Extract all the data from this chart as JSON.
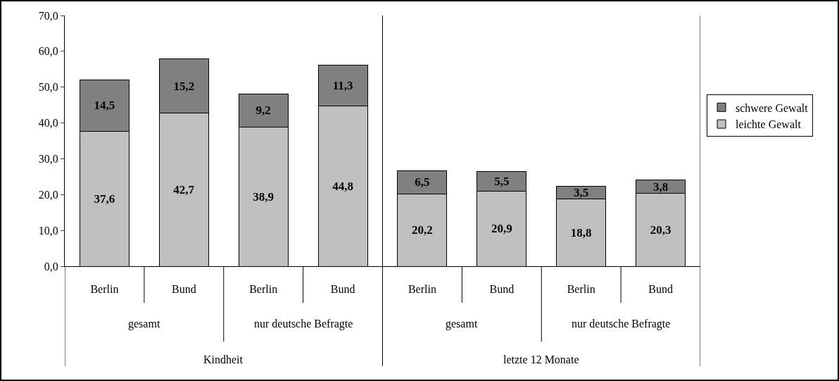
{
  "chart_data": {
    "type": "bar",
    "stacked": true,
    "categories": [
      "Berlin",
      "Bund",
      "Berlin",
      "Bund",
      "Berlin",
      "Bund",
      "Berlin",
      "Bund"
    ],
    "series": [
      {
        "name": "leichte Gewalt",
        "color": "#c0c0c0",
        "values": [
          37.6,
          42.7,
          38.9,
          44.8,
          20.2,
          20.9,
          18.8,
          20.3
        ],
        "value_labels": [
          "37,6",
          "42,7",
          "38,9",
          "44,8",
          "20,2",
          "20,9",
          "18,8",
          "20,3"
        ]
      },
      {
        "name": "schwere Gewalt",
        "color": "#808080",
        "values": [
          14.5,
          15.2,
          9.2,
          11.3,
          6.5,
          5.5,
          3.5,
          3.8
        ],
        "value_labels": [
          "14,5",
          "15,2",
          "9,2",
          "11,3",
          "6,5",
          "5,5",
          "3,5",
          "3,8"
        ]
      }
    ],
    "ylim": [
      0,
      70
    ],
    "yticks": [
      {
        "value": 0,
        "label": "0,0"
      },
      {
        "value": 10,
        "label": "10,0"
      },
      {
        "value": 20,
        "label": "20,0"
      },
      {
        "value": 30,
        "label": "30,0"
      },
      {
        "value": 40,
        "label": "40,0"
      },
      {
        "value": 50,
        "label": "50,0"
      },
      {
        "value": 60,
        "label": "60,0"
      },
      {
        "value": 70,
        "label": "70,0"
      }
    ],
    "grid": false,
    "legend": "right",
    "annotations": [
      "gesamt",
      "nur deutsche Befragte",
      "gesamt",
      "nur deutsche Befragte",
      "Kindheit",
      "letzte 12 Monate"
    ]
  }
}
